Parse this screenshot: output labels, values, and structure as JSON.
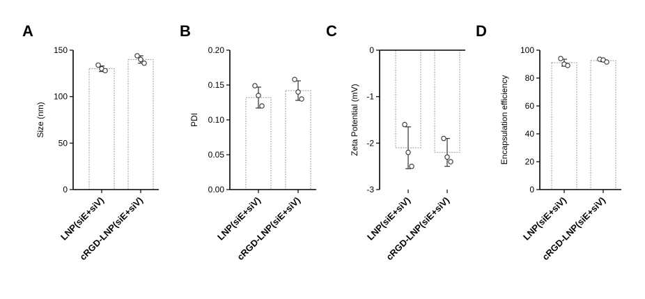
{
  "chart_data": [
    {
      "panel": "A",
      "type": "bar",
      "ylabel": "Size (nm)",
      "ylim": [
        0,
        150
      ],
      "yticks": [
        0,
        50,
        100,
        150
      ],
      "categories": [
        "LNP(siE+siV)",
        "cRGD-LNP(siE+siV)"
      ],
      "values": [
        130,
        140
      ],
      "errors": [
        3,
        4
      ],
      "points": [
        [
          134,
          130,
          128
        ],
        [
          144,
          140,
          136
        ]
      ]
    },
    {
      "panel": "B",
      "type": "bar",
      "ylabel": "PDI",
      "ylim": [
        0,
        0.2
      ],
      "yticks": [
        0.0,
        0.05,
        0.1,
        0.15,
        0.2
      ],
      "ytick_labels": [
        "0.00",
        "0.05",
        "0.10",
        "0.15",
        "0.20"
      ],
      "categories": [
        "LNP(siE+siV)",
        "cRGD-LNP(siE+siV)"
      ],
      "values": [
        0.132,
        0.142
      ],
      "errors": [
        0.015,
        0.014
      ],
      "points": [
        [
          0.149,
          0.135,
          0.12
        ],
        [
          0.158,
          0.14,
          0.13
        ]
      ]
    },
    {
      "panel": "C",
      "type": "bar",
      "ylabel": "Zeta Potential (mV)",
      "ylim": [
        -3,
        0
      ],
      "yticks": [
        -3,
        -2,
        -1,
        0
      ],
      "categories": [
        "LNP(siE+siV)",
        "cRGD-LNP(siE+siV)"
      ],
      "values": [
        -2.1,
        -2.2
      ],
      "errors": [
        0.45,
        0.3
      ],
      "points": [
        [
          -1.6,
          -2.2,
          -2.5
        ],
        [
          -1.9,
          -2.3,
          -2.4
        ]
      ]
    },
    {
      "panel": "D",
      "type": "bar",
      "ylabel": "Encapsulation efficiency",
      "ylim": [
        0,
        100
      ],
      "yticks": [
        0,
        20,
        40,
        60,
        80,
        100
      ],
      "categories": [
        "LNP(siE+siV)",
        "cRGD-LNP(siE+siV)"
      ],
      "values": [
        91,
        92.5
      ],
      "errors": [
        2.5,
        0.8
      ],
      "points": [
        [
          94,
          90,
          89
        ],
        [
          93.5,
          93,
          91.5
        ]
      ]
    }
  ]
}
